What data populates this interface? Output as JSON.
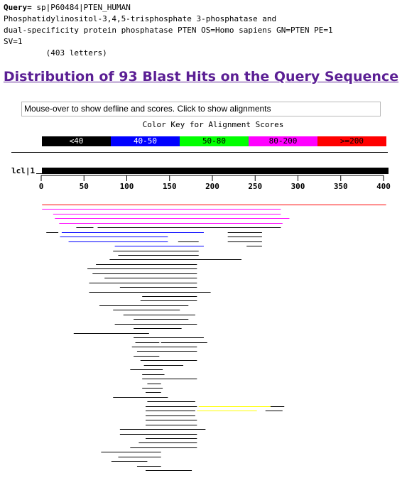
{
  "query": {
    "prefix": "Query=",
    "id": " sp|P60484|PTEN_HUMAN",
    "desc_line1": "Phosphatidylinositol-3,4,5-trisphosphate 3-phosphatase and",
    "desc_line2": "dual-specificity protein phosphatase PTEN OS=Homo sapiens GN=PTEN PE=1",
    "desc_line3": "SV=1",
    "length": "         (403 letters)"
  },
  "title": "Distribution of 93 Blast Hits on the Query Sequence",
  "defline_box": "Mouse-over to show defline and scores. Click to show alignments",
  "color_key": {
    "title": "Color Key for Alignment Scores",
    "ranges": [
      {
        "label": "<40",
        "bg": "#000000",
        "fg": "#ffffff"
      },
      {
        "label": "40-50",
        "bg": "#0000ff",
        "fg": "#ffffff"
      },
      {
        "label": "50-80",
        "bg": "#00ff00",
        "fg": "#000000"
      },
      {
        "label": "80-200",
        "bg": "#ff00ff",
        "fg": "#000000"
      },
      {
        "label": ">=200",
        "bg": "#ff0000",
        "fg": "#000000"
      }
    ]
  },
  "query_label": "lcl|1",
  "axis_ticks": [
    "0",
    "50",
    "100",
    "150",
    "200",
    "250",
    "300",
    "350",
    "400"
  ],
  "hits": [
    {
      "row": 0,
      "start": 1,
      "end": 403,
      "color": "#ff0000"
    },
    {
      "row": 1,
      "start": 1,
      "end": 280,
      "color": "#ff00ff"
    },
    {
      "row": 2,
      "start": 14,
      "end": 280,
      "color": "#ff00ff"
    },
    {
      "row": 3,
      "start": 16,
      "end": 290,
      "color": "#ff00ff"
    },
    {
      "row": 4,
      "start": 21,
      "end": 282,
      "color": "#ff00ff"
    },
    {
      "row": 5,
      "start": 41,
      "end": 61,
      "color": "#000000"
    },
    {
      "row": 5,
      "start": 66,
      "end": 280,
      "color": "#000000"
    },
    {
      "row": 6,
      "start": 6,
      "end": 20,
      "color": "#000000"
    },
    {
      "row": 6,
      "start": 24,
      "end": 190,
      "color": "#0000ff"
    },
    {
      "row": 6,
      "start": 218,
      "end": 258,
      "color": "#000000"
    },
    {
      "row": 7,
      "start": 22,
      "end": 148,
      "color": "#0000ff"
    },
    {
      "row": 7,
      "start": 218,
      "end": 258,
      "color": "#000000"
    },
    {
      "row": 8,
      "start": 32,
      "end": 148,
      "color": "#0000ff"
    },
    {
      "row": 8,
      "start": 160,
      "end": 184,
      "color": "#000000"
    },
    {
      "row": 8,
      "start": 218,
      "end": 258,
      "color": "#000000"
    },
    {
      "row": 9,
      "start": 86,
      "end": 190,
      "color": "#0000ff"
    },
    {
      "row": 9,
      "start": 240,
      "end": 258,
      "color": "#000000"
    },
    {
      "row": 10,
      "start": 84,
      "end": 184,
      "color": "#000000"
    },
    {
      "row": 11,
      "start": 90,
      "end": 184,
      "color": "#000000"
    },
    {
      "row": 12,
      "start": 80,
      "end": 234,
      "color": "#000000"
    },
    {
      "row": 13,
      "start": 64,
      "end": 182,
      "color": "#000000"
    },
    {
      "row": 14,
      "start": 54,
      "end": 182,
      "color": "#000000"
    },
    {
      "row": 15,
      "start": 60,
      "end": 182,
      "color": "#000000"
    },
    {
      "row": 16,
      "start": 74,
      "end": 182,
      "color": "#000000"
    },
    {
      "row": 17,
      "start": 56,
      "end": 182,
      "color": "#000000"
    },
    {
      "row": 18,
      "start": 92,
      "end": 182,
      "color": "#000000"
    },
    {
      "row": 19,
      "start": 56,
      "end": 198,
      "color": "#000000"
    },
    {
      "row": 20,
      "start": 118,
      "end": 182,
      "color": "#000000"
    },
    {
      "row": 21,
      "start": 116,
      "end": 182,
      "color": "#000000"
    },
    {
      "row": 22,
      "start": 68,
      "end": 172,
      "color": "#000000"
    },
    {
      "row": 23,
      "start": 84,
      "end": 162,
      "color": "#000000"
    },
    {
      "row": 24,
      "start": 96,
      "end": 180,
      "color": "#000000"
    },
    {
      "row": 25,
      "start": 108,
      "end": 172,
      "color": "#000000"
    },
    {
      "row": 26,
      "start": 86,
      "end": 182,
      "color": "#000000"
    },
    {
      "row": 27,
      "start": 108,
      "end": 164,
      "color": "#000000"
    },
    {
      "row": 28,
      "start": 38,
      "end": 126,
      "color": "#000000"
    },
    {
      "row": 29,
      "start": 108,
      "end": 190,
      "color": "#000000"
    },
    {
      "row": 30,
      "start": 110,
      "end": 138,
      "color": "#000000"
    },
    {
      "row": 30,
      "start": 140,
      "end": 194,
      "color": "#000000"
    },
    {
      "row": 31,
      "start": 106,
      "end": 182,
      "color": "#000000"
    },
    {
      "row": 32,
      "start": 112,
      "end": 182,
      "color": "#000000"
    },
    {
      "row": 33,
      "start": 108,
      "end": 138,
      "color": "#000000"
    },
    {
      "row": 34,
      "start": 116,
      "end": 182,
      "color": "#000000"
    },
    {
      "row": 35,
      "start": 120,
      "end": 166,
      "color": "#000000"
    },
    {
      "row": 36,
      "start": 104,
      "end": 142,
      "color": "#000000"
    },
    {
      "row": 37,
      "start": 118,
      "end": 144,
      "color": "#000000"
    },
    {
      "row": 38,
      "start": 118,
      "end": 182,
      "color": "#000000"
    },
    {
      "row": 39,
      "start": 124,
      "end": 140,
      "color": "#000000"
    },
    {
      "row": 40,
      "start": 118,
      "end": 142,
      "color": "#000000"
    },
    {
      "row": 41,
      "start": 122,
      "end": 140,
      "color": "#000000"
    },
    {
      "row": 42,
      "start": 84,
      "end": 148,
      "color": "#000000"
    },
    {
      "row": 43,
      "start": 124,
      "end": 180,
      "color": "#000000"
    },
    {
      "row": 44,
      "start": 122,
      "end": 182,
      "color": "#000000"
    },
    {
      "row": 44,
      "start": 184,
      "end": 268,
      "color": "#ffff00"
    },
    {
      "row": 44,
      "start": 268,
      "end": 284,
      "color": "#000000"
    },
    {
      "row": 45,
      "start": 122,
      "end": 180,
      "color": "#000000"
    },
    {
      "row": 45,
      "start": 182,
      "end": 252,
      "color": "#ffff00"
    },
    {
      "row": 45,
      "start": 262,
      "end": 282,
      "color": "#000000"
    },
    {
      "row": 46,
      "start": 122,
      "end": 180,
      "color": "#000000"
    },
    {
      "row": 47,
      "start": 122,
      "end": 182,
      "color": "#000000"
    },
    {
      "row": 48,
      "start": 122,
      "end": 182,
      "color": "#000000"
    },
    {
      "row": 49,
      "start": 92,
      "end": 192,
      "color": "#000000"
    },
    {
      "row": 50,
      "start": 92,
      "end": 182,
      "color": "#000000"
    },
    {
      "row": 51,
      "start": 122,
      "end": 182,
      "color": "#000000"
    },
    {
      "row": 52,
      "start": 114,
      "end": 182,
      "color": "#000000"
    },
    {
      "row": 53,
      "start": 104,
      "end": 182,
      "color": "#000000"
    },
    {
      "row": 54,
      "start": 70,
      "end": 140,
      "color": "#000000"
    },
    {
      "row": 55,
      "start": 90,
      "end": 140,
      "color": "#000000"
    },
    {
      "row": 56,
      "start": 82,
      "end": 124,
      "color": "#000000"
    },
    {
      "row": 57,
      "start": 112,
      "end": 140,
      "color": "#000000"
    },
    {
      "row": 58,
      "start": 122,
      "end": 176,
      "color": "#000000"
    }
  ]
}
